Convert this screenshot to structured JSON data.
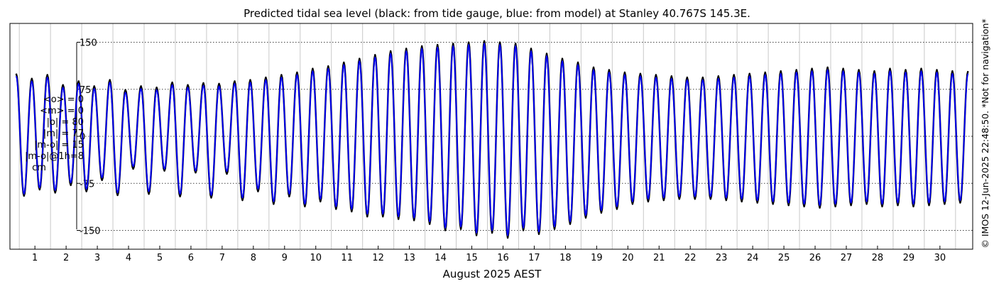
{
  "chart_data": {
    "type": "line",
    "title": "Predicted tidal sea level (black: from tide gauge, blue: from model) at Stanley 40.767S 145.3E.",
    "xlabel": "August 2025 AEST",
    "ylabel": "",
    "xlim": [
      0.7,
      31.55
    ],
    "ylim": [
      -180,
      180
    ],
    "y_ticks": [
      150,
      75,
      0,
      -75,
      -150
    ],
    "x_ticks": [
      1,
      2,
      3,
      4,
      5,
      6,
      7,
      8,
      9,
      10,
      11,
      12,
      13,
      14,
      15,
      16,
      17,
      18,
      19,
      20,
      21,
      22,
      23,
      24,
      25,
      26,
      27,
      28,
      29,
      30
    ],
    "grid": true,
    "copyright": "© IMOS 12-Jun-2025 22:48:50. *Not for navigation*",
    "series": [
      {
        "name": "tide gauge",
        "color": "#000000",
        "x": [
          0.9,
          1.15,
          1.4,
          1.65,
          1.9,
          2.15,
          2.4,
          2.65,
          2.9,
          3.15,
          3.4,
          3.65,
          3.9,
          4.15,
          4.4,
          4.65,
          4.9,
          5.15,
          5.4,
          5.65,
          5.9,
          6.15,
          6.4,
          6.65,
          6.9,
          7.15,
          7.4,
          7.65,
          7.9,
          8.15,
          8.4,
          8.65,
          8.9,
          9.15,
          9.4,
          9.65,
          9.9,
          10.15,
          10.4,
          10.65,
          10.9,
          11.15,
          11.4,
          11.65,
          11.9,
          12.15,
          12.4,
          12.65,
          12.9,
          13.15,
          13.4,
          13.65,
          13.9,
          14.15,
          14.4,
          14.65,
          14.9,
          15.15,
          15.4,
          15.65,
          15.9,
          16.15,
          16.4,
          16.65,
          16.9,
          17.15,
          17.4,
          17.65,
          17.9,
          18.15,
          18.4,
          18.65,
          18.9,
          19.15,
          19.4,
          19.65,
          19.9,
          20.15,
          20.4,
          20.65,
          20.9,
          21.15,
          21.4,
          21.65,
          21.9,
          22.15,
          22.4,
          22.65,
          22.9,
          23.15,
          23.4,
          23.65,
          23.9,
          24.15,
          24.4,
          24.65,
          24.9,
          25.15,
          25.4,
          25.65,
          25.9,
          26.15,
          26.4,
          26.65,
          26.9,
          27.15,
          27.4,
          27.65,
          27.9,
          28.15,
          28.4,
          28.65,
          28.9,
          29.15,
          29.4,
          29.65,
          29.9,
          30.15,
          30.4,
          30.65,
          30.9,
          31.15,
          31.4
        ],
        "y": [
          100,
          -95,
          92,
          -85,
          98,
          -90,
          82,
          -78,
          88,
          -88,
          80,
          -70,
          90,
          -94,
          74,
          -52,
          80,
          -92,
          78,
          -55,
          86,
          -96,
          82,
          -58,
          85,
          -98,
          84,
          -60,
          88,
          -102,
          90,
          -88,
          94,
          -108,
          98,
          -96,
          102,
          -112,
          108,
          -104,
          112,
          -116,
          118,
          -120,
          124,
          -128,
          130,
          -128,
          136,
          -132,
          140,
          -134,
          144,
          -140,
          146,
          -150,
          148,
          -148,
          150,
          -158,
          152,
          -154,
          150,
          -162,
          148,
          -150,
          140,
          -156,
          132,
          -148,
          124,
          -140,
          118,
          -130,
          110,
          -122,
          106,
          -116,
          102,
          -108,
          100,
          -104,
          98,
          -102,
          96,
          -100,
          94,
          -100,
          94,
          -100,
          96,
          -102,
          98,
          -104,
          100,
          -106,
          102,
          -108,
          104,
          -110,
          106,
          -112,
          108,
          -114,
          110,
          -112,
          108,
          -110,
          106,
          -108,
          104,
          -112,
          108,
          -110,
          106,
          -112,
          108,
          -110,
          106,
          -108,
          104,
          -106,
          104
        ]
      },
      {
        "name": "model",
        "color": "#0000ff",
        "x": [
          0.9,
          1.15,
          1.4,
          1.65,
          1.9,
          2.15,
          2.4,
          2.65,
          2.9,
          3.15,
          3.4,
          3.65,
          3.9,
          4.15,
          4.4,
          4.65,
          4.9,
          5.15,
          5.4,
          5.65,
          5.9,
          6.15,
          6.4,
          6.65,
          6.9,
          7.15,
          7.4,
          7.65,
          7.9,
          8.15,
          8.4,
          8.65,
          8.9,
          9.15,
          9.4,
          9.65,
          9.9,
          10.15,
          10.4,
          10.65,
          10.9,
          11.15,
          11.4,
          11.65,
          11.9,
          12.15,
          12.4,
          12.65,
          12.9,
          13.15,
          13.4,
          13.65,
          13.9,
          14.15,
          14.4,
          14.65,
          14.9,
          15.15,
          15.4,
          15.65,
          15.9,
          16.15,
          16.4,
          16.65,
          16.9,
          17.15,
          17.4,
          17.65,
          17.9,
          18.15,
          18.4,
          18.65,
          18.9,
          19.15,
          19.4,
          19.65,
          19.9,
          20.15,
          20.4,
          20.65,
          20.9,
          21.15,
          21.4,
          21.65,
          21.9,
          22.15,
          22.4,
          22.65,
          22.9,
          23.15,
          23.4,
          23.65,
          23.9,
          24.15,
          24.4,
          24.65,
          24.9,
          25.15,
          25.4,
          25.65,
          25.9,
          26.15,
          26.4,
          26.65,
          26.9,
          27.15,
          27.4,
          27.65,
          27.9,
          28.15,
          28.4,
          28.65,
          28.9,
          29.15,
          29.4,
          29.65,
          29.9,
          30.15,
          30.4,
          30.65,
          30.9,
          31.15,
          31.4
        ],
        "y": [
          96,
          -92,
          88,
          -82,
          94,
          -86,
          78,
          -74,
          84,
          -84,
          76,
          -66,
          86,
          -90,
          70,
          -48,
          76,
          -88,
          74,
          -52,
          82,
          -92,
          78,
          -55,
          81,
          -94,
          80,
          -56,
          84,
          -98,
          86,
          -84,
          90,
          -104,
          94,
          -92,
          98,
          -108,
          104,
          -100,
          108,
          -112,
          114,
          -116,
          120,
          -124,
          126,
          -124,
          132,
          -128,
          136,
          -130,
          140,
          -136,
          142,
          -146,
          144,
          -144,
          146,
          -154,
          148,
          -150,
          146,
          -158,
          144,
          -146,
          136,
          -152,
          128,
          -144,
          120,
          -136,
          114,
          -126,
          106,
          -118,
          102,
          -112,
          98,
          -104,
          96,
          -100,
          94,
          -98,
          92,
          -96,
          90,
          -96,
          90,
          -96,
          92,
          -98,
          94,
          -100,
          96,
          -102,
          98,
          -104,
          100,
          -106,
          102,
          -108,
          104,
          -110,
          106,
          -108,
          104,
          -106,
          102,
          -104,
          100,
          -108,
          104,
          -106,
          102,
          -108,
          104,
          -106,
          102,
          -104,
          100,
          -102,
          100
        ]
      }
    ]
  },
  "stats": {
    "mean_obs": "<o> = 0",
    "mean_model": "<m> = 0",
    "abs_obs": "|o| = 80",
    "abs_model": "|m| = 77",
    "abs_diff": "|m-o| = 15",
    "abs_diff_1h": "|m-o|@1h=8",
    "unit": "cm"
  }
}
